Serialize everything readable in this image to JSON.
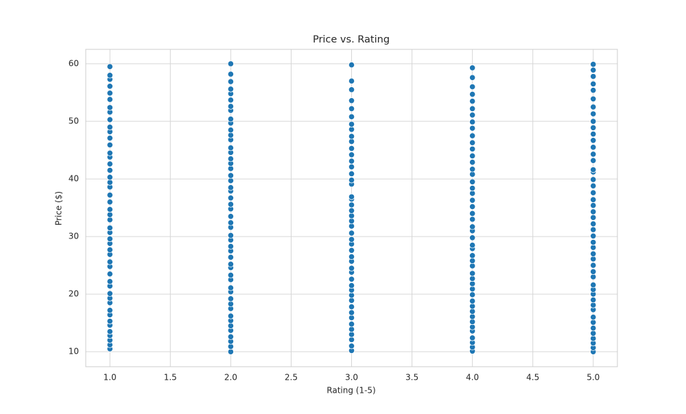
{
  "chart_data": {
    "type": "scatter",
    "title": "Price vs. Rating",
    "x_label": "Rating (1-5)",
    "y_label": "Price ($)",
    "color": "#1f77b4",
    "grid": true,
    "xlim": [
      0.8,
      5.2
    ],
    "ylim": [
      7.4,
      62.5
    ],
    "xticks": [
      {
        "value": 1,
        "label": "1.0"
      },
      {
        "value": 1.5,
        "label": "1.5"
      },
      {
        "value": 2,
        "label": "2.0"
      },
      {
        "value": 2.5,
        "label": "2.5"
      },
      {
        "value": 3,
        "label": "3.0"
      },
      {
        "value": 3.5,
        "label": "3.5"
      },
      {
        "value": 4,
        "label": "4.0"
      },
      {
        "value": 4.5,
        "label": "4.5"
      },
      {
        "value": 5,
        "label": "5.0"
      }
    ],
    "yticks": [
      10,
      20,
      30,
      40,
      50,
      60
    ],
    "x": [
      1,
      1,
      1,
      1,
      1,
      1,
      1,
      1,
      1,
      1,
      1,
      1,
      1,
      1,
      1,
      1,
      1,
      1,
      1,
      1,
      1,
      1,
      1,
      1,
      1,
      1,
      1,
      1,
      1,
      1,
      1,
      1,
      1,
      1,
      1,
      1,
      1,
      1,
      1,
      1,
      1,
      1,
      1,
      1,
      1,
      1,
      1,
      1,
      2,
      2,
      2,
      2,
      2,
      2,
      2,
      2,
      2,
      2,
      2,
      2,
      2,
      2,
      2,
      2,
      2,
      2,
      2,
      2,
      2,
      2,
      2,
      2,
      2,
      2,
      2,
      2,
      2,
      2,
      2,
      2,
      2,
      2,
      2,
      2,
      2,
      2,
      2,
      2,
      2,
      2,
      2,
      2,
      2,
      2,
      2,
      2,
      2,
      2,
      3,
      3,
      3,
      3,
      3,
      3,
      3,
      3,
      3,
      3,
      3,
      3,
      3,
      3,
      3,
      3,
      3,
      3,
      3,
      3,
      3,
      3,
      3,
      3,
      3,
      3,
      3,
      3,
      3,
      3,
      3,
      3,
      3,
      3,
      3,
      3,
      3,
      3,
      3,
      3,
      3,
      3,
      3,
      3,
      3,
      3,
      4,
      4,
      4,
      4,
      4,
      4,
      4,
      4,
      4,
      4,
      4,
      4,
      4,
      4,
      4,
      4,
      4,
      4,
      4,
      4,
      4,
      4,
      4,
      4,
      4,
      4,
      4,
      4,
      4,
      4,
      4,
      4,
      4,
      4,
      4,
      4,
      4,
      4,
      4,
      4,
      4,
      4,
      4,
      4,
      4,
      4,
      4,
      5,
      5,
      5,
      5,
      5,
      5,
      5,
      5,
      5,
      5,
      5,
      5,
      5,
      5,
      5,
      5,
      5,
      5,
      5,
      5,
      5,
      5,
      5,
      5,
      5,
      5,
      5,
      5,
      5,
      5,
      5,
      5,
      5,
      5,
      5,
      5,
      5,
      5,
      5,
      5,
      5,
      5,
      5,
      5,
      5,
      5,
      5,
      5
    ],
    "values": [
      10.5,
      11.2,
      12.0,
      12.8,
      13.5,
      14.6,
      15.3,
      16.4,
      17.2,
      18.5,
      19.3,
      20.1,
      21.4,
      22.2,
      23.5,
      24.8,
      25.6,
      26.9,
      27.7,
      28.8,
      29.6,
      30.7,
      31.5,
      32.9,
      33.8,
      34.7,
      36.0,
      37.2,
      38.6,
      39.4,
      40.3,
      41.5,
      42.6,
      43.8,
      44.5,
      45.9,
      47.1,
      48.2,
      49.0,
      50.3,
      51.6,
      52.4,
      53.8,
      54.9,
      56.1,
      57.3,
      58.0,
      59.5,
      10.0,
      10.9,
      11.8,
      12.6,
      13.7,
      14.5,
      15.4,
      16.2,
      17.5,
      18.3,
      19.2,
      20.4,
      21.1,
      22.5,
      23.3,
      24.6,
      25.2,
      26.4,
      27.5,
      28.3,
      29.4,
      30.2,
      31.6,
      32.4,
      33.5,
      34.8,
      35.6,
      36.7,
      37.9,
      38.5,
      39.7,
      40.6,
      41.8,
      42.7,
      43.5,
      44.6,
      45.4,
      46.8,
      47.6,
      48.5,
      49.7,
      50.4,
      51.9,
      52.6,
      53.7,
      54.8,
      55.6,
      56.9,
      58.2,
      60.0,
      10.2,
      11.0,
      12.1,
      13.0,
      13.9,
      14.8,
      15.9,
      16.8,
      17.8,
      18.9,
      19.8,
      20.7,
      21.5,
      22.6,
      23.8,
      24.5,
      25.7,
      26.5,
      27.6,
      28.7,
      29.5,
      30.6,
      31.8,
      32.7,
      33.6,
      34.5,
      35.5,
      36.5,
      36.9,
      39.1,
      39.8,
      40.9,
      42.1,
      43.1,
      44.2,
      45.3,
      46.5,
      47.4,
      48.6,
      49.5,
      50.8,
      52.2,
      53.6,
      55.5,
      57.0,
      59.8,
      10.1,
      10.8,
      11.6,
      12.4,
      13.6,
      14.3,
      15.2,
      16.1,
      17.0,
      17.9,
      18.8,
      19.9,
      20.9,
      21.8,
      22.7,
      23.6,
      24.9,
      25.8,
      26.7,
      27.9,
      28.5,
      29.8,
      31.0,
      31.7,
      33.0,
      34.0,
      35.2,
      36.3,
      37.5,
      38.4,
      39.5,
      40.8,
      41.7,
      42.9,
      44.0,
      45.2,
      46.3,
      47.5,
      48.8,
      49.9,
      51.1,
      52.2,
      53.5,
      54.7,
      56.0,
      57.6,
      59.3,
      10.0,
      10.7,
      11.5,
      12.3,
      13.2,
      14.1,
      15.1,
      16.0,
      17.3,
      18.1,
      19.0,
      20.0,
      20.8,
      21.6,
      23.0,
      23.9,
      25.0,
      26.1,
      27.0,
      28.1,
      29.0,
      30.1,
      31.2,
      32.2,
      33.3,
      34.3,
      35.4,
      36.4,
      37.6,
      38.8,
      39.9,
      41.2,
      41.6,
      43.2,
      44.3,
      45.5,
      46.7,
      47.8,
      48.9,
      50.0,
      51.3,
      52.5,
      53.9,
      55.4,
      56.5,
      57.8,
      58.9,
      59.9
    ]
  }
}
